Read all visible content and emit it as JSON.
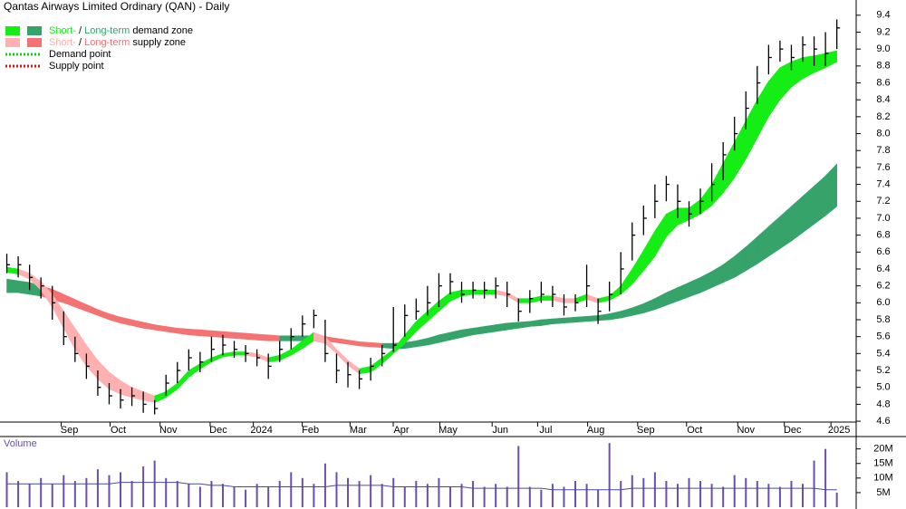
{
  "chart_data": {
    "type": "ohlc",
    "title": "Qantas Airways Limited Ordinary (QAN) - Daily",
    "legend": {
      "zones": [
        {
          "short": "Short-",
          "sep": " / ",
          "long": "Long-term",
          "rest": " demand zone",
          "short_color": "#14ee14",
          "long_color": "#35a36a"
        },
        {
          "short": "Short-",
          "sep": " / ",
          "long": "Long-term",
          "rest": " supply zone",
          "short_color": "#ffb0b0",
          "long_color": "#f47272"
        }
      ],
      "points": [
        {
          "label": "Demand point",
          "color": "#14cc14"
        },
        {
          "label": "Supply point",
          "color": "#e01010"
        }
      ]
    },
    "bar_color": "#000000",
    "xticks": [
      {
        "value": 5.5,
        "label": "Sep"
      },
      {
        "value": 9.8,
        "label": "Oct"
      },
      {
        "value": 14.2,
        "label": "Nov"
      },
      {
        "value": 18.6,
        "label": "Dec"
      },
      {
        "value": 22.4,
        "label": "2024"
      },
      {
        "value": 26.7,
        "label": "Feb"
      },
      {
        "value": 30.9,
        "label": "Mar"
      },
      {
        "value": 34.7,
        "label": "Apr"
      },
      {
        "value": 38.8,
        "label": "May"
      },
      {
        "value": 43.4,
        "label": "Jun"
      },
      {
        "value": 47.4,
        "label": "Jul"
      },
      {
        "value": 51.8,
        "label": "Aug"
      },
      {
        "value": 56.2,
        "label": "Sep"
      },
      {
        "value": 60.5,
        "label": "Oct"
      },
      {
        "value": 65,
        "label": "Nov"
      },
      {
        "value": 69.1,
        "label": "Dec"
      },
      {
        "value": 73.2,
        "label": "2025"
      }
    ],
    "xlim": [
      -0.6,
      74.7
    ],
    "ylim": [
      4.59,
      9.58
    ],
    "yticks": [
      4.6,
      4.8,
      {
        "value": 5,
        "label": "5.0"
      },
      5.2,
      5.4,
      5.6,
      5.8,
      {
        "value": 6,
        "label": "6.0"
      },
      6.2,
      6.4,
      6.6,
      6.8,
      {
        "value": 7,
        "label": "7.0"
      },
      7.2,
      7.4,
      7.6,
      7.8,
      {
        "value": 8,
        "label": "8.0"
      },
      8.2,
      8.4,
      8.6,
      8.8,
      {
        "value": 9,
        "label": "9.0"
      },
      9.2,
      9.4
    ],
    "high": [
      6.58,
      6.55,
      6.45,
      6.3,
      6.2,
      5.9,
      5.6,
      5.4,
      5.2,
      5.05,
      4.98,
      5.0,
      4.95,
      4.85,
      5.15,
      5.3,
      5.45,
      5.42,
      5.6,
      5.62,
      5.55,
      5.5,
      5.45,
      5.4,
      5.55,
      5.7,
      5.85,
      5.92,
      5.8,
      5.4,
      5.3,
      5.2,
      5.35,
      5.5,
      5.95,
      5.98,
      6.05,
      6.2,
      6.35,
      6.35,
      6.25,
      6.25,
      6.25,
      6.3,
      6.25,
      6.05,
      6.15,
      6.25,
      6.2,
      6.1,
      6.1,
      6.45,
      6.05,
      6.25,
      6.6,
      6.95,
      7.15,
      7.4,
      7.5,
      7.4,
      7.2,
      7.35,
      7.65,
      7.9,
      8.2,
      8.5,
      8.8,
      9.05,
      9.1,
      9.05,
      9.15,
      9.15,
      9.2,
      9.35
    ],
    "low": [
      6.35,
      6.3,
      6.15,
      6.05,
      5.8,
      5.5,
      5.3,
      5.1,
      4.9,
      4.8,
      4.75,
      4.78,
      4.7,
      4.68,
      4.9,
      5.05,
      5.2,
      5.18,
      5.3,
      5.38,
      5.35,
      5.3,
      5.25,
      5.1,
      5.3,
      5.45,
      5.6,
      5.7,
      5.3,
      5.05,
      5.0,
      4.98,
      5.08,
      5.25,
      5.42,
      5.6,
      5.8,
      5.85,
      5.95,
      6.1,
      6.0,
      6.05,
      6.05,
      6.05,
      5.95,
      5.78,
      5.88,
      6.0,
      5.95,
      5.85,
      5.9,
      5.95,
      5.75,
      5.9,
      6.1,
      6.5,
      6.8,
      7.0,
      7.2,
      7.0,
      6.9,
      7.05,
      7.2,
      7.45,
      7.8,
      8.05,
      8.35,
      8.7,
      8.85,
      8.75,
      8.85,
      8.8,
      8.8,
      9.0
    ],
    "close": [
      6.45,
      6.45,
      6.3,
      6.2,
      6.0,
      5.6,
      5.4,
      5.25,
      5.0,
      4.9,
      4.85,
      4.9,
      4.8,
      4.75,
      5.05,
      5.2,
      5.35,
      5.3,
      5.45,
      5.5,
      5.45,
      5.4,
      5.35,
      5.25,
      5.45,
      5.6,
      5.75,
      5.85,
      5.4,
      5.2,
      5.15,
      5.1,
      5.25,
      5.4,
      5.5,
      5.85,
      5.9,
      6.0,
      6.2,
      6.25,
      6.1,
      6.15,
      6.15,
      6.2,
      6.1,
      5.9,
      6.05,
      6.1,
      6.1,
      5.95,
      6.0,
      6.2,
      5.9,
      6.1,
      6.4,
      6.8,
      7.0,
      7.2,
      7.4,
      7.2,
      7.05,
      7.2,
      7.4,
      7.75,
      8.0,
      8.3,
      8.6,
      8.9,
      9.0,
      8.9,
      9.05,
      9.0,
      8.95,
      9.25
    ],
    "short_term_upper": [
      6.42,
      6.4,
      6.35,
      6.25,
      6.1,
      5.9,
      5.7,
      5.5,
      5.32,
      5.18,
      5.08,
      5.0,
      4.95,
      4.9,
      4.95,
      5.05,
      5.2,
      5.28,
      5.35,
      5.4,
      5.42,
      5.42,
      5.4,
      5.35,
      5.38,
      5.45,
      5.55,
      5.65,
      5.6,
      5.45,
      5.32,
      5.22,
      5.25,
      5.35,
      5.45,
      5.62,
      5.78,
      5.9,
      6.02,
      6.12,
      6.15,
      6.15,
      6.15,
      6.15,
      6.12,
      6.05,
      6.05,
      6.08,
      6.08,
      6.05,
      6.05,
      6.1,
      6.05,
      6.08,
      6.2,
      6.4,
      6.62,
      6.85,
      7.05,
      7.12,
      7.12,
      7.22,
      7.4,
      7.65,
      7.9,
      8.15,
      8.4,
      8.62,
      8.78,
      8.85,
      8.9,
      8.92,
      8.95,
      8.98
    ],
    "short_term_lower": [
      6.36,
      6.34,
      6.28,
      6.15,
      5.95,
      5.7,
      5.45,
      5.25,
      5.1,
      4.98,
      4.92,
      4.88,
      4.85,
      4.82,
      4.88,
      4.98,
      5.12,
      5.22,
      5.3,
      5.36,
      5.38,
      5.38,
      5.36,
      5.3,
      5.32,
      5.38,
      5.46,
      5.55,
      5.52,
      5.4,
      5.26,
      5.16,
      5.18,
      5.28,
      5.4,
      5.52,
      5.66,
      5.78,
      5.9,
      6.02,
      6.08,
      6.1,
      6.1,
      6.1,
      6.08,
      6.0,
      6.0,
      6.03,
      6.03,
      6.0,
      6.0,
      6.04,
      6.0,
      6.03,
      6.1,
      6.22,
      6.38,
      6.55,
      6.78,
      6.92,
      6.98,
      7.05,
      7.15,
      7.3,
      7.48,
      7.7,
      7.95,
      8.2,
      8.4,
      8.55,
      8.65,
      8.72,
      8.78,
      8.85
    ],
    "long_term_upper": [
      6.28,
      6.26,
      6.24,
      6.2,
      6.16,
      6.1,
      6.04,
      5.98,
      5.92,
      5.87,
      5.83,
      5.8,
      5.77,
      5.74,
      5.72,
      5.7,
      5.69,
      5.68,
      5.67,
      5.66,
      5.65,
      5.64,
      5.63,
      5.62,
      5.61,
      5.61,
      5.61,
      5.61,
      5.6,
      5.58,
      5.56,
      5.54,
      5.53,
      5.52,
      5.52,
      5.53,
      5.55,
      5.58,
      5.62,
      5.65,
      5.68,
      5.7,
      5.72,
      5.74,
      5.76,
      5.77,
      5.78,
      5.8,
      5.81,
      5.82,
      5.83,
      5.84,
      5.85,
      5.87,
      5.9,
      5.94,
      5.99,
      6.05,
      6.12,
      6.18,
      6.24,
      6.3,
      6.37,
      6.45,
      6.55,
      6.66,
      6.78,
      6.9,
      7.02,
      7.14,
      7.26,
      7.38,
      7.5,
      7.64
    ],
    "long_term_lower": [
      6.12,
      6.12,
      6.1,
      6.08,
      6.04,
      6.0,
      5.95,
      5.9,
      5.85,
      5.8,
      5.76,
      5.73,
      5.7,
      5.68,
      5.66,
      5.64,
      5.62,
      5.61,
      5.6,
      5.59,
      5.58,
      5.57,
      5.56,
      5.55,
      5.55,
      5.55,
      5.55,
      5.56,
      5.55,
      5.53,
      5.51,
      5.49,
      5.48,
      5.47,
      5.46,
      5.46,
      5.48,
      5.5,
      5.53,
      5.56,
      5.59,
      5.62,
      5.64,
      5.66,
      5.68,
      5.7,
      5.72,
      5.73,
      5.75,
      5.76,
      5.77,
      5.78,
      5.79,
      5.8,
      5.82,
      5.85,
      5.88,
      5.92,
      5.97,
      6.02,
      6.07,
      6.12,
      6.18,
      6.24,
      6.3,
      6.38,
      6.46,
      6.55,
      6.64,
      6.73,
      6.83,
      6.93,
      7.03,
      7.14
    ],
    "volume": {
      "label": "Volume",
      "color": "#6a4fb0",
      "avg_color": "#4a4a9a",
      "ylim": [
        0,
        23
      ],
      "yticks": [
        {
          "value": 5,
          "label": "5M"
        },
        {
          "value": 10,
          "label": "10M"
        },
        {
          "value": 15,
          "label": "15M"
        },
        {
          "value": 20,
          "label": "20M"
        }
      ],
      "values": [
        12,
        9,
        8,
        10,
        8,
        11,
        9,
        10,
        13,
        11,
        12,
        9,
        14,
        16,
        10,
        9,
        8,
        7,
        9,
        8,
        7,
        6,
        8,
        7,
        9,
        12,
        10,
        8,
        15,
        12,
        10,
        9,
        11,
        8,
        10,
        7,
        9,
        8,
        10,
        7,
        8,
        9,
        7,
        8,
        7,
        21,
        7,
        6,
        8,
        7,
        9,
        8,
        6,
        22,
        9,
        11,
        10,
        12,
        9,
        8,
        10,
        9,
        8,
        7,
        11,
        10,
        9,
        8,
        7,
        9,
        8,
        16,
        20,
        5
      ],
      "average": [
        8,
        8,
        8,
        8,
        8,
        8,
        8,
        8,
        8,
        8,
        8.5,
        8.5,
        8.5,
        8.5,
        8.5,
        8.5,
        8,
        8,
        7.5,
        7.5,
        7,
        7,
        7,
        7,
        7,
        7,
        7,
        7,
        7,
        7.5,
        7.5,
        7.5,
        7.5,
        7.5,
        7,
        7,
        7,
        7,
        7,
        7,
        7,
        6.5,
        6.5,
        6.5,
        6.5,
        6.5,
        6.5,
        6.5,
        6,
        6,
        6,
        6,
        6,
        6,
        6,
        6.5,
        6.5,
        6.5,
        6.5,
        6.5,
        6.5,
        6.5,
        6.5,
        6.5,
        6.5,
        6.5,
        6.5,
        6.5,
        6.5,
        6.5,
        6.5,
        6.5,
        6,
        6
      ]
    }
  }
}
